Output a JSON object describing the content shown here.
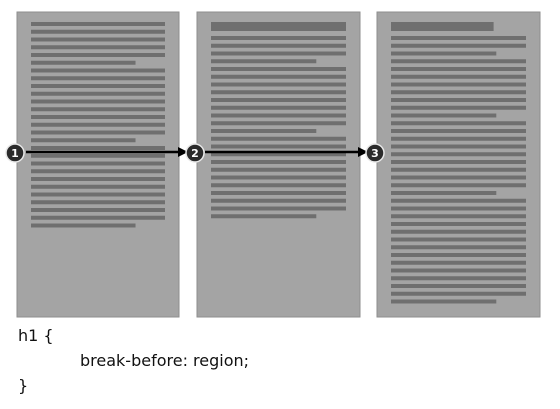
{
  "regions": [
    {
      "marker": "1"
    },
    {
      "marker": "2"
    },
    {
      "marker": "3"
    }
  ],
  "code": {
    "line1": "h1 {",
    "line2": "break-before: region;",
    "line3": "}"
  },
  "colors": {
    "region_fill": "#a4a4a4",
    "region_border": "#8e8e8e",
    "text_line": "#6f6f6f",
    "arrow": "#000000",
    "marker_fill": "#2b2b2b",
    "marker_text": "#ffffff"
  }
}
